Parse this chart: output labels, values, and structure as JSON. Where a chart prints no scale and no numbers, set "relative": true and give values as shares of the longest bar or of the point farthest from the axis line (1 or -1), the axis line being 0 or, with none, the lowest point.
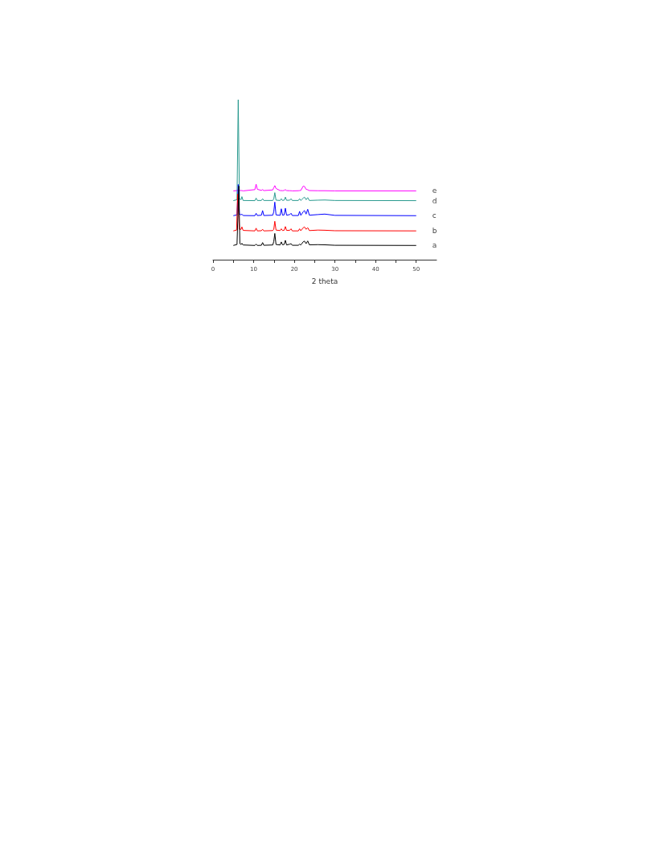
{
  "chart_data": {
    "type": "line",
    "relative": true,
    "xlabel": "2 theta",
    "xlim": [
      0,
      55
    ],
    "xticks": [
      0,
      {
        "value": 5,
        "label": null
      },
      10,
      {
        "value": 15,
        "label": null
      },
      20,
      {
        "value": 25,
        "label": null
      },
      30,
      {
        "value": 35,
        "label": null
      },
      40,
      {
        "value": 45,
        "label": null
      },
      50
    ],
    "x": [
      5,
      5.9,
      6.2,
      6.5,
      6.9,
      7.1,
      7.4,
      10.3,
      10.6,
      10.9,
      11.9,
      12.2,
      12.5,
      14.7,
      14.95,
      15.2,
      15.5,
      16.5,
      16.8,
      17.1,
      17.5,
      17.8,
      18.1,
      18.9,
      19.2,
      19.5,
      21.0,
      21.3,
      21.6,
      22.2,
      22.5,
      22.9,
      23.3,
      23.7,
      25.8,
      27.5,
      30,
      50
    ],
    "grid": false,
    "legend": false,
    "marker": "none",
    "line_style": "solid",
    "tick_labels": "x",
    "series": [
      {
        "name": "a",
        "color": "#000000",
        "x": [
          5,
          5.9,
          6.35,
          6.6,
          6.9,
          7.1,
          7.4,
          10.3,
          10.6,
          10.9,
          11.9,
          12.2,
          12.5,
          14.7,
          14.95,
          15.2,
          15.5,
          16.5,
          16.8,
          17.1,
          17.5,
          17.8,
          18.1,
          18.9,
          19.2,
          19.5,
          21.0,
          21.3,
          21.6,
          22.2,
          22.5,
          22.9,
          23.3,
          23.7,
          25.8,
          27.5,
          30,
          50
        ],
        "values": [
          0.089,
          0.095,
          0.46,
          0.1,
          0.095,
          0.102,
          0.092,
          0.089,
          0.097,
          0.089,
          0.09,
          0.107,
          0.09,
          0.092,
          0.114,
          0.164,
          0.095,
          0.092,
          0.111,
          0.093,
          0.095,
          0.121,
          0.092,
          0.097,
          0.1,
          0.09,
          0.09,
          0.097,
          0.092,
          0.112,
          0.116,
          0.1,
          0.117,
          0.093,
          0.094,
          0.093,
          0.09,
          0.089
        ]
      },
      {
        "name": "b",
        "color": "#ff0000",
        "x": [
          5,
          5.8,
          6.05,
          6.5,
          6.9,
          7.1,
          7.4,
          10.3,
          10.6,
          10.9,
          11.9,
          12.2,
          12.5,
          14.7,
          14.95,
          15.2,
          15.5,
          16.5,
          16.8,
          17.1,
          17.5,
          17.8,
          18.1,
          18.9,
          19.2,
          19.5,
          21.0,
          21.3,
          21.6,
          22.2,
          22.5,
          22.9,
          23.3,
          23.7,
          25.8,
          27.5,
          30,
          50
        ],
        "values": [
          0.18,
          0.185,
          0.41,
          0.19,
          0.19,
          0.205,
          0.183,
          0.18,
          0.197,
          0.18,
          0.181,
          0.19,
          0.18,
          0.182,
          0.19,
          0.24,
          0.185,
          0.182,
          0.193,
          0.182,
          0.184,
          0.207,
          0.183,
          0.184,
          0.193,
          0.18,
          0.18,
          0.193,
          0.181,
          0.2,
          0.205,
          0.19,
          0.2,
          0.182,
          0.185,
          0.184,
          0.181,
          0.18
        ]
      },
      {
        "name": "c",
        "color": "#0000ff",
        "values": [
          0.275,
          0.28,
          0.47,
          0.285,
          0.28,
          0.285,
          0.276,
          0.275,
          0.29,
          0.276,
          0.278,
          0.307,
          0.276,
          0.278,
          0.3,
          0.36,
          0.28,
          0.277,
          0.318,
          0.278,
          0.28,
          0.322,
          0.278,
          0.282,
          0.29,
          0.276,
          0.276,
          0.302,
          0.277,
          0.3,
          0.307,
          0.285,
          0.315,
          0.278,
          0.282,
          0.285,
          0.277,
          0.275
        ]
      },
      {
        "name": "d",
        "color": "#2a9a8f",
        "values": [
          0.369,
          0.375,
          1,
          0.38,
          0.375,
          0.394,
          0.37,
          0.369,
          0.385,
          0.37,
          0.37,
          0.381,
          0.37,
          0.37,
          0.38,
          0.419,
          0.372,
          0.37,
          0.381,
          0.37,
          0.372,
          0.391,
          0.371,
          0.372,
          0.381,
          0.37,
          0.37,
          0.381,
          0.37,
          0.385,
          0.391,
          0.375,
          0.388,
          0.37,
          0.372,
          0.373,
          0.37,
          0.369
        ]
      },
      {
        "name": "e",
        "color": "#ff00ff",
        "values": [
          0.43,
          0.432,
          0.436,
          0.433,
          0.432,
          0.432,
          0.43,
          0.438,
          0.472,
          0.44,
          0.433,
          0.438,
          0.432,
          0.436,
          0.45,
          0.463,
          0.445,
          0.432,
          0.432,
          0.431,
          0.433,
          0.438,
          0.432,
          0.431,
          0.431,
          0.43,
          0.431,
          0.432,
          0.433,
          0.46,
          0.458,
          0.44,
          0.437,
          0.432,
          0.431,
          0.431,
          0.43,
          0.43
        ]
      }
    ]
  }
}
